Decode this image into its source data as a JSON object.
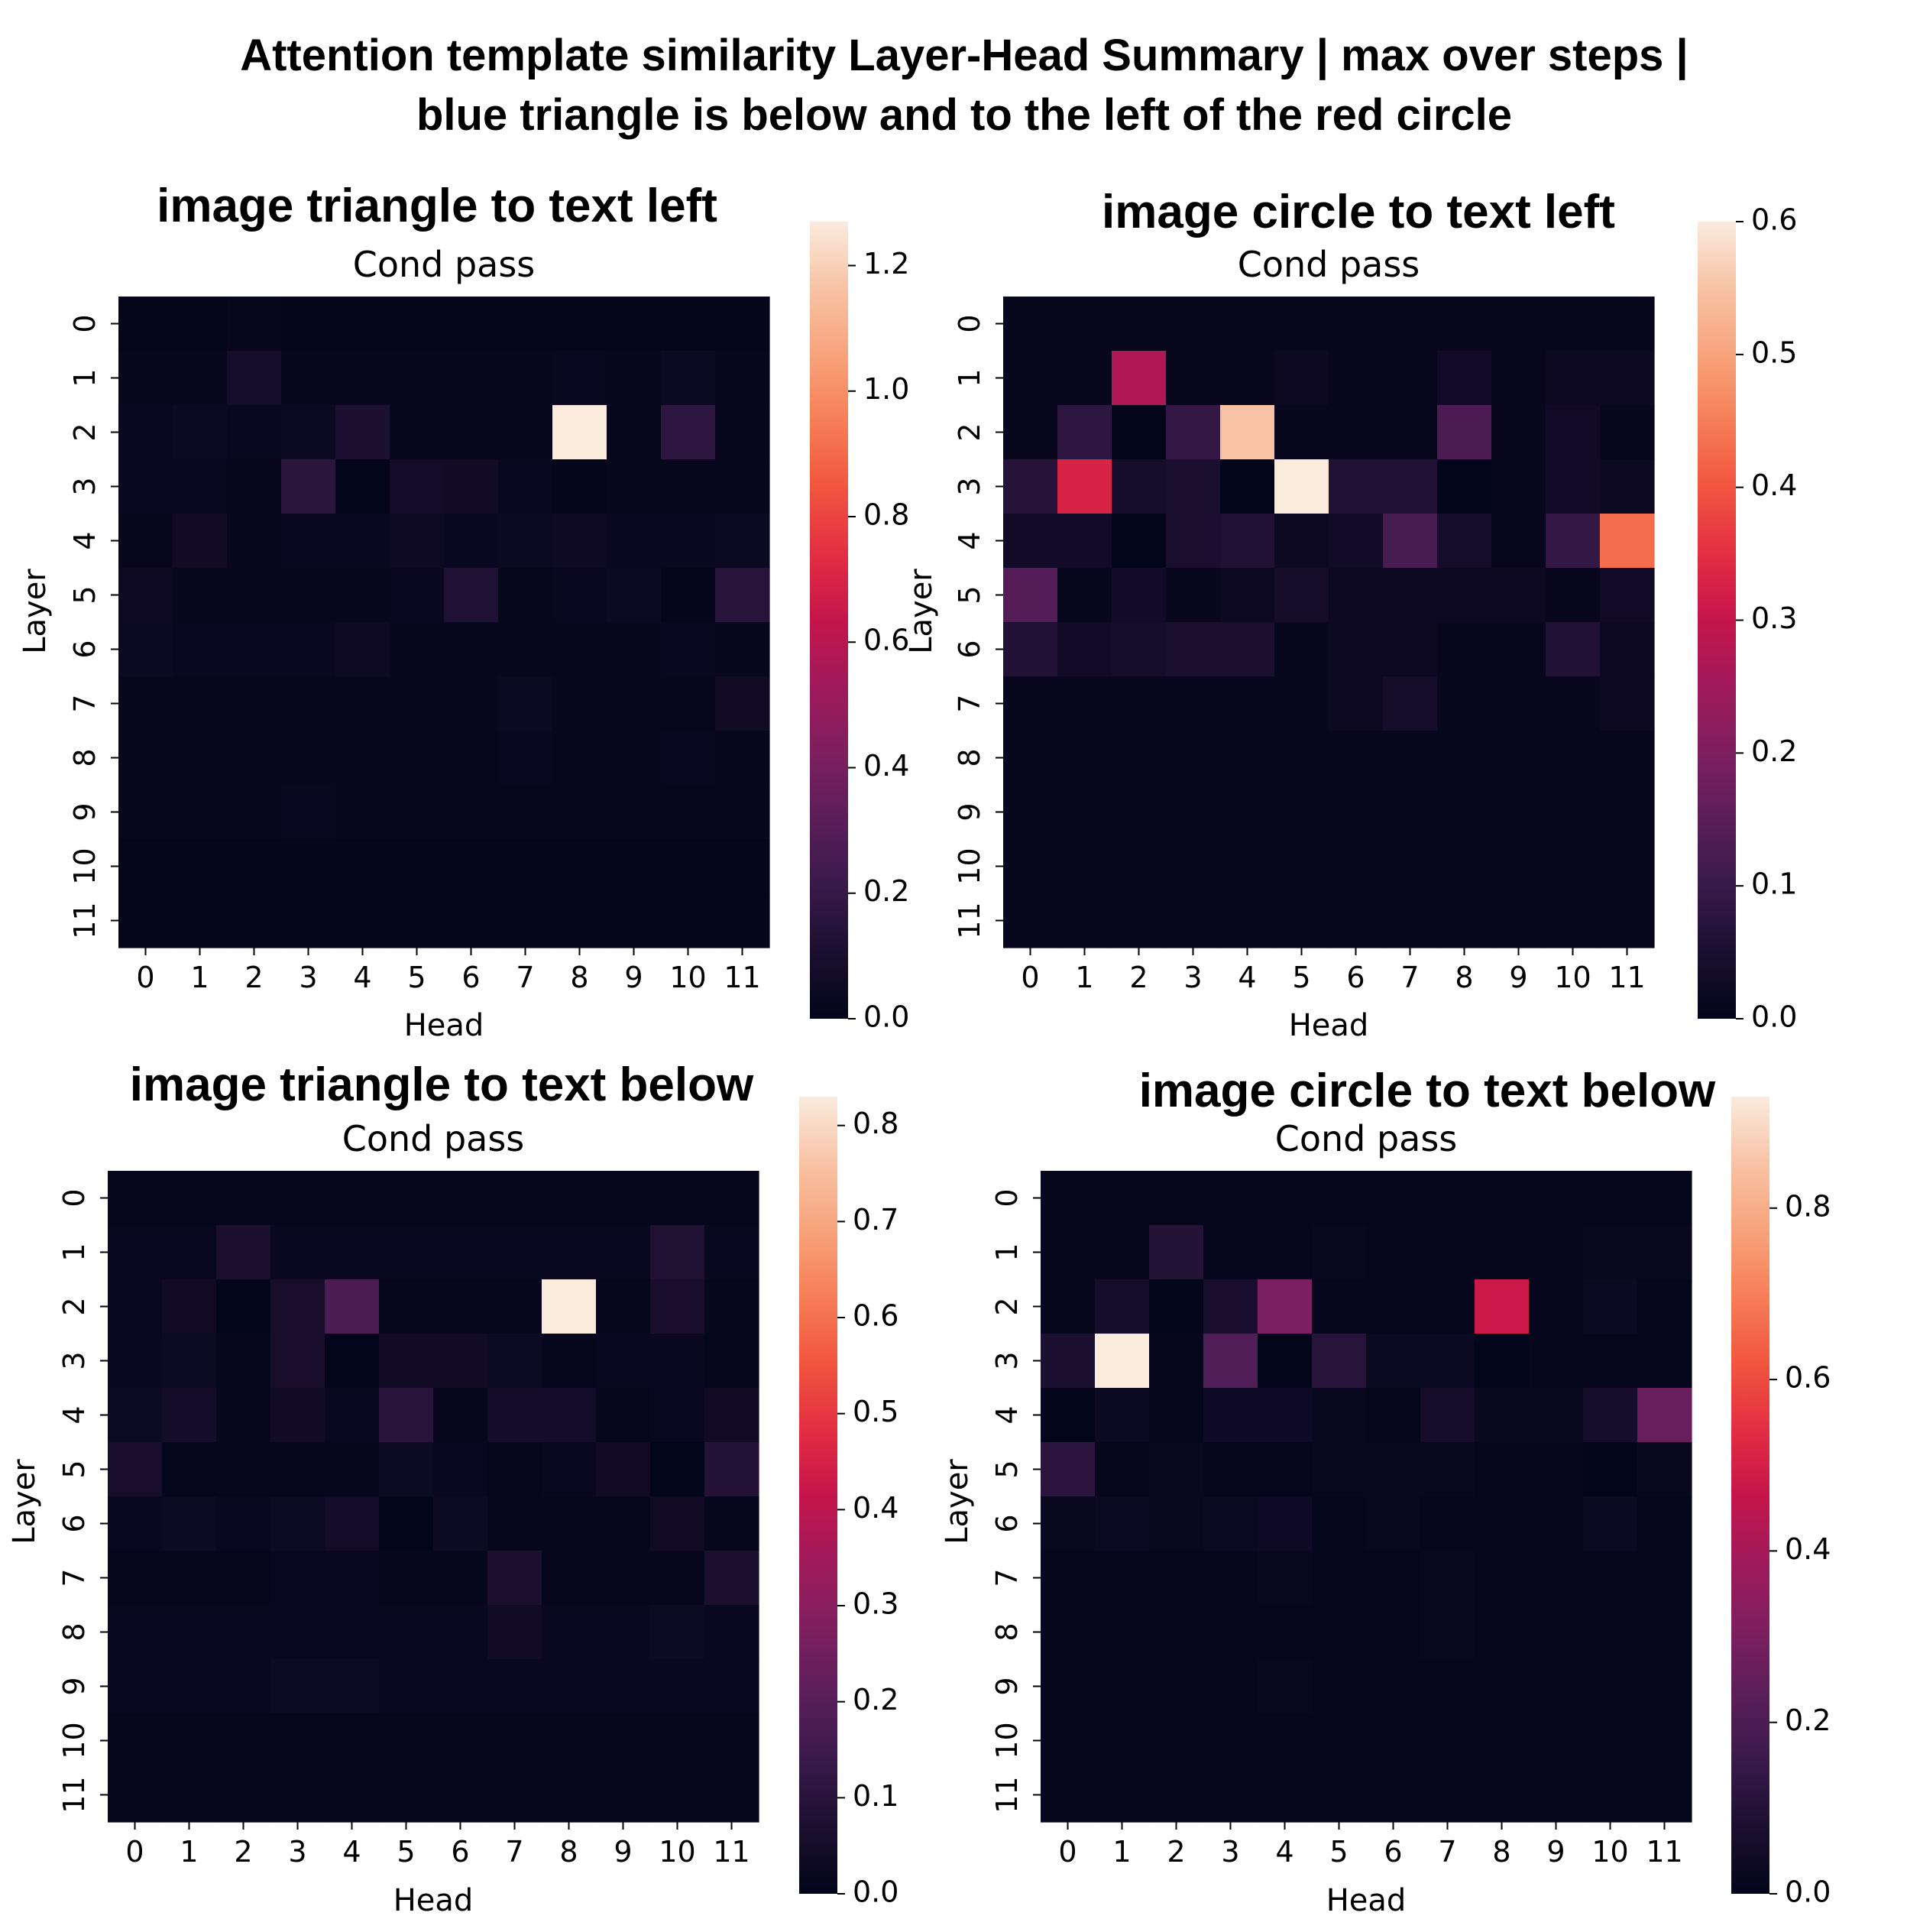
{
  "figure": {
    "title_line1": "Attention template similarity Layer-Head Summary | max over steps |",
    "title_line2": "blue triangle is below and to the left of the red circle"
  },
  "chart_data": [
    {
      "type": "heatmap",
      "title": "image triangle to text left",
      "subtitle": "Cond pass",
      "xlabel": "Head",
      "ylabel": "Layer",
      "x": [
        "0",
        "1",
        "2",
        "3",
        "4",
        "5",
        "6",
        "7",
        "8",
        "9",
        "10",
        "11"
      ],
      "y": [
        "0",
        "1",
        "2",
        "3",
        "4",
        "5",
        "6",
        "7",
        "8",
        "9",
        "10",
        "11"
      ],
      "vmin": 0.0,
      "vmax": 1.27,
      "colorbar_ticks": [
        "0.0",
        "0.2",
        "0.4",
        "0.6",
        "0.8",
        "1.0",
        "1.2"
      ],
      "colormap": "rocket",
      "values": [
        [
          0.01,
          0.01,
          0.02,
          0.01,
          0.01,
          0.01,
          0.01,
          0.01,
          0.01,
          0.01,
          0.01,
          0.01
        ],
        [
          0.02,
          0.02,
          0.08,
          0.02,
          0.02,
          0.02,
          0.02,
          0.02,
          0.03,
          0.02,
          0.04,
          0.02
        ],
        [
          0.03,
          0.04,
          0.03,
          0.04,
          0.11,
          0.02,
          0.02,
          0.02,
          1.27,
          0.02,
          0.17,
          0.02
        ],
        [
          0.03,
          0.03,
          0.02,
          0.16,
          0.0,
          0.07,
          0.06,
          0.03,
          0.01,
          0.02,
          0.02,
          0.02
        ],
        [
          0.02,
          0.06,
          0.02,
          0.03,
          0.03,
          0.05,
          0.03,
          0.04,
          0.05,
          0.03,
          0.03,
          0.04
        ],
        [
          0.05,
          0.02,
          0.02,
          0.02,
          0.02,
          0.03,
          0.12,
          0.02,
          0.03,
          0.04,
          0.01,
          0.15
        ],
        [
          0.04,
          0.03,
          0.03,
          0.03,
          0.05,
          0.02,
          0.02,
          0.02,
          0.02,
          0.02,
          0.03,
          0.02
        ],
        [
          0.02,
          0.02,
          0.02,
          0.02,
          0.02,
          0.02,
          0.02,
          0.04,
          0.02,
          0.02,
          0.02,
          0.06
        ],
        [
          0.02,
          0.02,
          0.02,
          0.02,
          0.02,
          0.02,
          0.02,
          0.03,
          0.02,
          0.02,
          0.03,
          0.02
        ],
        [
          0.02,
          0.02,
          0.02,
          0.03,
          0.02,
          0.02,
          0.02,
          0.02,
          0.02,
          0.02,
          0.02,
          0.02
        ],
        [
          0.01,
          0.01,
          0.01,
          0.01,
          0.01,
          0.01,
          0.01,
          0.01,
          0.01,
          0.01,
          0.01,
          0.01
        ],
        [
          0.01,
          0.01,
          0.01,
          0.01,
          0.01,
          0.01,
          0.01,
          0.01,
          0.01,
          0.01,
          0.01,
          0.01
        ]
      ]
    },
    {
      "type": "heatmap",
      "title": "image circle to text left",
      "subtitle": "Cond pass",
      "xlabel": "Head",
      "ylabel": "Layer",
      "x": [
        "0",
        "1",
        "2",
        "3",
        "4",
        "5",
        "6",
        "7",
        "8",
        "9",
        "10",
        "11"
      ],
      "y": [
        "0",
        "1",
        "2",
        "3",
        "4",
        "5",
        "6",
        "7",
        "8",
        "9",
        "10",
        "11"
      ],
      "vmin": 0.0,
      "vmax": 0.6,
      "colorbar_ticks": [
        "0.0",
        "0.1",
        "0.2",
        "0.3",
        "0.4",
        "0.5",
        "0.6"
      ],
      "colormap": "rocket",
      "values": [
        [
          0.01,
          0.01,
          0.01,
          0.01,
          0.01,
          0.01,
          0.01,
          0.01,
          0.01,
          0.01,
          0.01,
          0.01
        ],
        [
          0.01,
          0.01,
          0.27,
          0.01,
          0.01,
          0.02,
          0.01,
          0.01,
          0.03,
          0.01,
          0.02,
          0.02
        ],
        [
          0.01,
          0.08,
          0.0,
          0.09,
          0.55,
          0.01,
          0.01,
          0.01,
          0.13,
          0.01,
          0.03,
          0.01
        ],
        [
          0.07,
          0.33,
          0.04,
          0.05,
          0.0,
          0.6,
          0.06,
          0.06,
          0.0,
          0.01,
          0.03,
          0.02
        ],
        [
          0.03,
          0.03,
          0.0,
          0.05,
          0.06,
          0.02,
          0.03,
          0.12,
          0.04,
          0.01,
          0.09,
          0.43
        ],
        [
          0.14,
          0.01,
          0.03,
          0.01,
          0.02,
          0.04,
          0.02,
          0.02,
          0.02,
          0.02,
          0.01,
          0.03
        ],
        [
          0.06,
          0.03,
          0.04,
          0.05,
          0.05,
          0.01,
          0.02,
          0.02,
          0.01,
          0.01,
          0.06,
          0.02
        ],
        [
          0.01,
          0.01,
          0.01,
          0.01,
          0.01,
          0.01,
          0.02,
          0.04,
          0.01,
          0.01,
          0.01,
          0.02
        ],
        [
          0.01,
          0.01,
          0.01,
          0.01,
          0.01,
          0.01,
          0.01,
          0.01,
          0.01,
          0.01,
          0.01,
          0.01
        ],
        [
          0.01,
          0.01,
          0.01,
          0.01,
          0.01,
          0.01,
          0.01,
          0.01,
          0.01,
          0.01,
          0.01,
          0.01
        ],
        [
          0.01,
          0.01,
          0.01,
          0.01,
          0.01,
          0.01,
          0.01,
          0.01,
          0.01,
          0.01,
          0.01,
          0.01
        ],
        [
          0.01,
          0.01,
          0.01,
          0.01,
          0.01,
          0.01,
          0.01,
          0.01,
          0.01,
          0.01,
          0.01,
          0.01
        ]
      ]
    },
    {
      "type": "heatmap",
      "title": "image triangle to text below",
      "subtitle": "Cond pass",
      "xlabel": "Head",
      "ylabel": "Layer",
      "x": [
        "0",
        "1",
        "2",
        "3",
        "4",
        "5",
        "6",
        "7",
        "8",
        "9",
        "10",
        "11"
      ],
      "y": [
        "0",
        "1",
        "2",
        "3",
        "4",
        "5",
        "6",
        "7",
        "8",
        "9",
        "10",
        "11"
      ],
      "vmin": 0.0,
      "vmax": 0.83,
      "colorbar_ticks": [
        "0.0",
        "0.1",
        "0.2",
        "0.3",
        "0.4",
        "0.5",
        "0.6",
        "0.7",
        "0.8"
      ],
      "colormap": "rocket",
      "values": [
        [
          0.01,
          0.01,
          0.01,
          0.01,
          0.01,
          0.01,
          0.01,
          0.01,
          0.01,
          0.01,
          0.01,
          0.01
        ],
        [
          0.02,
          0.02,
          0.07,
          0.02,
          0.02,
          0.02,
          0.02,
          0.02,
          0.02,
          0.02,
          0.08,
          0.02
        ],
        [
          0.02,
          0.04,
          0.0,
          0.06,
          0.18,
          0.01,
          0.01,
          0.01,
          0.83,
          0.01,
          0.06,
          0.01
        ],
        [
          0.02,
          0.03,
          0.01,
          0.06,
          0.0,
          0.04,
          0.04,
          0.03,
          0.01,
          0.02,
          0.02,
          0.01
        ],
        [
          0.03,
          0.05,
          0.01,
          0.04,
          0.02,
          0.1,
          0.01,
          0.05,
          0.05,
          0.01,
          0.02,
          0.04
        ],
        [
          0.06,
          0.01,
          0.01,
          0.01,
          0.01,
          0.03,
          0.02,
          0.01,
          0.02,
          0.04,
          0.0,
          0.09
        ],
        [
          0.02,
          0.03,
          0.02,
          0.03,
          0.05,
          0.0,
          0.03,
          0.01,
          0.01,
          0.01,
          0.04,
          0.01
        ],
        [
          0.01,
          0.01,
          0.01,
          0.02,
          0.02,
          0.01,
          0.01,
          0.07,
          0.01,
          0.01,
          0.01,
          0.07
        ],
        [
          0.02,
          0.02,
          0.02,
          0.02,
          0.02,
          0.02,
          0.02,
          0.04,
          0.02,
          0.02,
          0.03,
          0.02
        ],
        [
          0.02,
          0.02,
          0.02,
          0.03,
          0.03,
          0.02,
          0.02,
          0.02,
          0.02,
          0.02,
          0.02,
          0.02
        ],
        [
          0.01,
          0.01,
          0.01,
          0.01,
          0.01,
          0.01,
          0.01,
          0.01,
          0.01,
          0.01,
          0.01,
          0.01
        ],
        [
          0.01,
          0.01,
          0.01,
          0.01,
          0.01,
          0.01,
          0.01,
          0.01,
          0.01,
          0.01,
          0.01,
          0.01
        ]
      ]
    },
    {
      "type": "heatmap",
      "title": "image circle to text below",
      "subtitle": "Cond pass",
      "xlabel": "Head",
      "ylabel": "Layer",
      "x": [
        "0",
        "1",
        "2",
        "3",
        "4",
        "5",
        "6",
        "7",
        "8",
        "9",
        "10",
        "11"
      ],
      "y": [
        "0",
        "1",
        "2",
        "3",
        "4",
        "5",
        "6",
        "7",
        "8",
        "9",
        "10",
        "11"
      ],
      "vmin": 0.0,
      "vmax": 0.93,
      "colorbar_ticks": [
        "0.0",
        "0.2",
        "0.4",
        "0.6",
        "0.8"
      ],
      "colormap": "rocket",
      "values": [
        [
          0.01,
          0.01,
          0.01,
          0.01,
          0.01,
          0.01,
          0.01,
          0.01,
          0.01,
          0.01,
          0.01,
          0.01
        ],
        [
          0.01,
          0.01,
          0.1,
          0.01,
          0.01,
          0.02,
          0.01,
          0.01,
          0.01,
          0.01,
          0.02,
          0.02
        ],
        [
          0.01,
          0.06,
          0.0,
          0.07,
          0.3,
          0.01,
          0.01,
          0.01,
          0.48,
          0.01,
          0.03,
          0.01
        ],
        [
          0.08,
          0.93,
          0.01,
          0.21,
          0.0,
          0.11,
          0.03,
          0.03,
          0.0,
          0.01,
          0.01,
          0.01
        ],
        [
          0.0,
          0.03,
          0.01,
          0.04,
          0.04,
          0.02,
          0.01,
          0.06,
          0.02,
          0.02,
          0.06,
          0.26
        ],
        [
          0.12,
          0.01,
          0.02,
          0.01,
          0.01,
          0.02,
          0.02,
          0.02,
          0.01,
          0.01,
          0.0,
          0.02
        ],
        [
          0.02,
          0.03,
          0.02,
          0.03,
          0.04,
          0.01,
          0.02,
          0.01,
          0.01,
          0.01,
          0.03,
          0.01
        ],
        [
          0.01,
          0.01,
          0.01,
          0.01,
          0.02,
          0.01,
          0.01,
          0.02,
          0.01,
          0.01,
          0.01,
          0.01
        ],
        [
          0.01,
          0.01,
          0.01,
          0.01,
          0.01,
          0.01,
          0.01,
          0.02,
          0.01,
          0.01,
          0.01,
          0.01
        ],
        [
          0.01,
          0.01,
          0.01,
          0.01,
          0.02,
          0.01,
          0.01,
          0.01,
          0.01,
          0.01,
          0.01,
          0.01
        ],
        [
          0.01,
          0.01,
          0.01,
          0.01,
          0.01,
          0.01,
          0.01,
          0.01,
          0.01,
          0.01,
          0.01,
          0.01
        ],
        [
          0.01,
          0.01,
          0.01,
          0.01,
          0.01,
          0.01,
          0.01,
          0.01,
          0.01,
          0.01,
          0.01,
          0.01
        ]
      ]
    }
  ]
}
